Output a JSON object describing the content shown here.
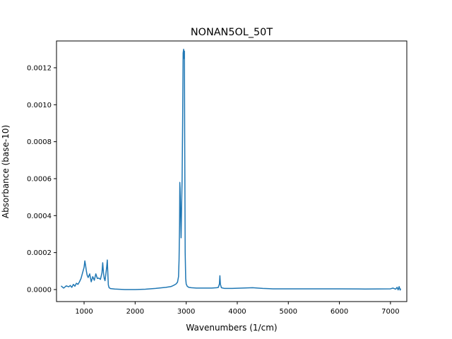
{
  "chart_data": {
    "type": "line",
    "title": "NONAN5OL_50T",
    "xlabel": "Wavenumbers (1/cm)",
    "ylabel": "Absorbance (base-10)",
    "xlim": [
      460,
      7320
    ],
    "ylim": [
      -6.5e-05,
      0.001345
    ],
    "xticks": [
      1000,
      2000,
      3000,
      4000,
      5000,
      6000,
      7000
    ],
    "xtick_labels": [
      "1000",
      "2000",
      "3000",
      "4000",
      "5000",
      "6000",
      "7000"
    ],
    "yticks": [
      0.0,
      0.0002,
      0.0004,
      0.0006,
      0.0008,
      0.001,
      0.0012
    ],
    "ytick_labels": [
      "0.0000",
      "0.0002",
      "0.0004",
      "0.0006",
      "0.0008",
      "0.0010",
      "0.0012"
    ],
    "grid": false,
    "series": [
      {
        "color": "#1f77b4",
        "x": [
          550,
          600,
          650,
          700,
          730,
          760,
          790,
          820,
          850,
          880,
          910,
          940,
          970,
          1000,
          1015,
          1030,
          1045,
          1060,
          1080,
          1110,
          1140,
          1170,
          1200,
          1230,
          1260,
          1290,
          1320,
          1350,
          1365,
          1380,
          1395,
          1410,
          1425,
          1440,
          1455,
          1465,
          1475,
          1490,
          1520,
          1600,
          1800,
          2000,
          2200,
          2400,
          2600,
          2700,
          2750,
          2800,
          2830,
          2850,
          2860,
          2870,
          2875,
          2880,
          2890,
          2900,
          2910,
          2920,
          2930,
          2940,
          2945,
          2950,
          2955,
          2960,
          2965,
          2970,
          2980,
          2990,
          3000,
          3020,
          3050,
          3100,
          3200,
          3300,
          3400,
          3500,
          3600,
          3630,
          3650,
          3660,
          3670,
          3690,
          3750,
          3900,
          4100,
          4300,
          4400,
          4500,
          4700,
          5000,
          5500,
          6000,
          6500,
          7000,
          7050,
          7100,
          7130,
          7150,
          7170,
          7190,
          7200
        ],
        "y": [
          2e-05,
          8e-06,
          2e-05,
          1.5e-05,
          2.2e-05,
          1.2e-05,
          2.8e-05,
          1.8e-05,
          3.4e-05,
          2.8e-05,
          4.2e-05,
          6e-05,
          9e-05,
          0.00012,
          0.000155,
          0.00013,
          0.0001,
          7.8e-05,
          6.5e-05,
          8.5e-05,
          4.2e-05,
          7e-05,
          5e-05,
          8.5e-05,
          6e-05,
          6.2e-05,
          5.5e-05,
          9e-05,
          0.000145,
          9e-05,
          6e-05,
          4.8e-05,
          8e-05,
          0.000115,
          0.00016,
          9e-05,
          2.5e-05,
          1e-05,
          5e-06,
          3e-06,
          0.0,
          0.0,
          2e-06,
          6e-06,
          1.2e-05,
          1.6e-05,
          2.2e-05,
          3e-05,
          4e-05,
          7e-05,
          0.00016,
          0.00035,
          0.00058,
          0.00055,
          0.00042,
          0.00028,
          0.00045,
          0.0006,
          0.0009,
          0.00128,
          0.00129,
          0.0013,
          0.00125,
          0.00128,
          0.00129,
          0.00085,
          0.0002,
          6e-05,
          3e-05,
          1.8e-05,
          1.2e-05,
          1e-05,
          8e-06,
          8e-06,
          8e-06,
          8e-06,
          1e-05,
          1.2e-05,
          3e-05,
          7.5e-05,
          2.8e-05,
          1e-05,
          6e-06,
          6e-06,
          8e-06,
          1e-05,
          8e-06,
          6e-06,
          4e-06,
          4e-06,
          4e-06,
          4e-06,
          3e-06,
          4e-06,
          8e-06,
          2e-06,
          1.2e-05,
          -2e-06,
          1.6e-05,
          -3e-06,
          5e-06
        ]
      }
    ]
  }
}
